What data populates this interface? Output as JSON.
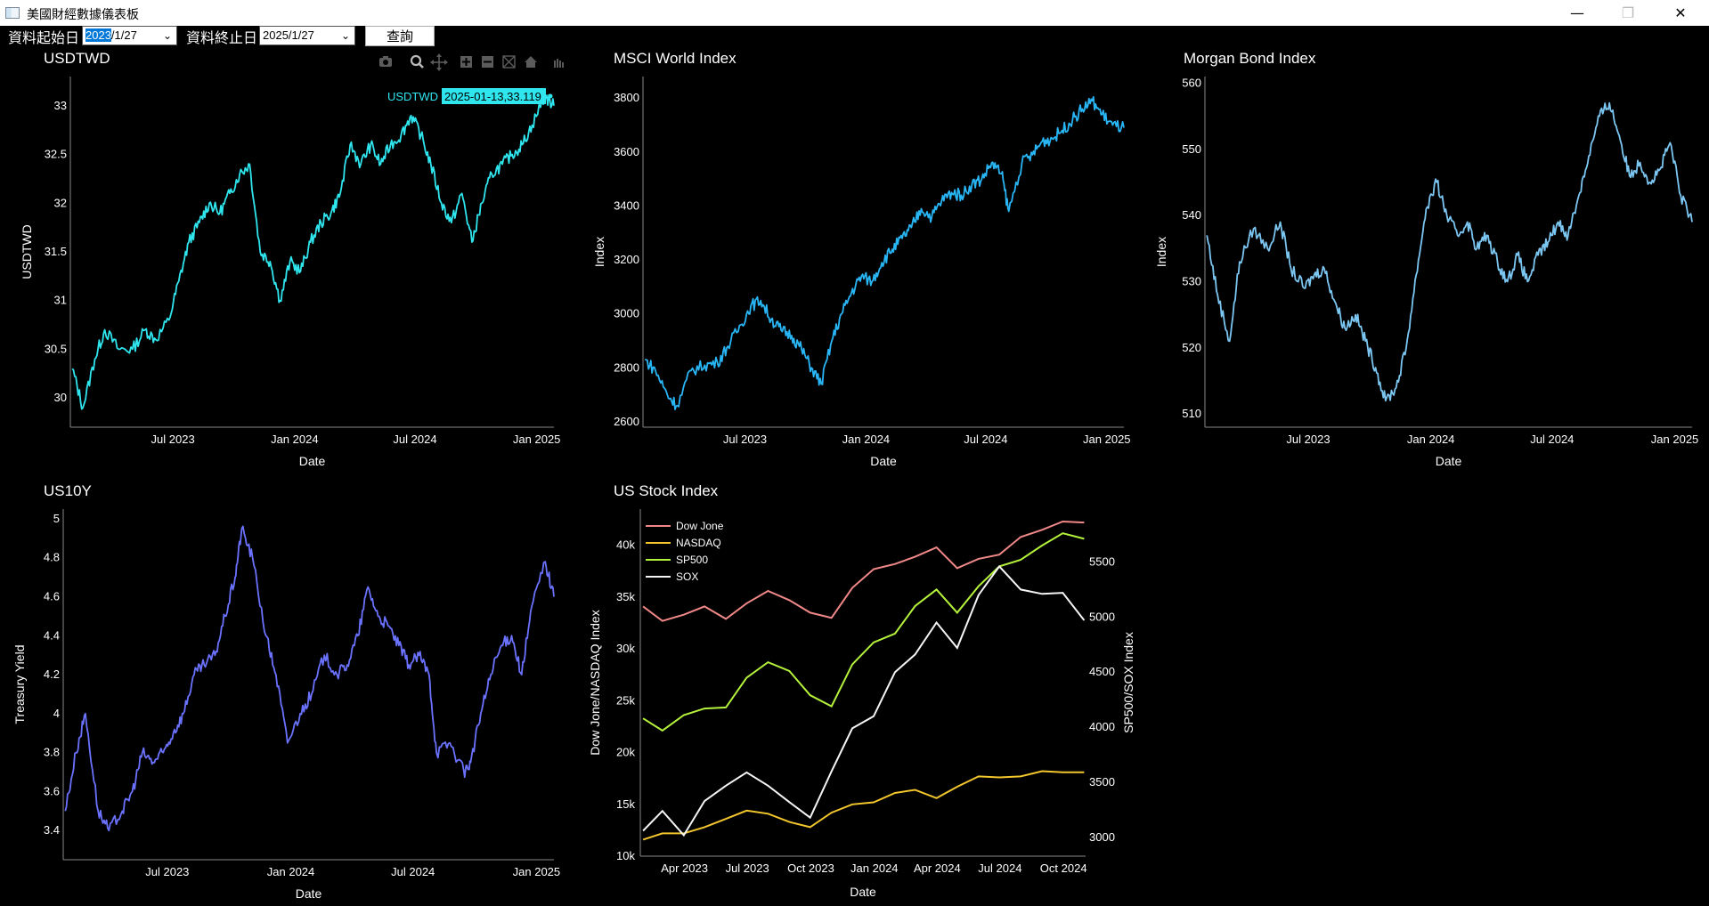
{
  "window": {
    "title": "美國財經數據儀表板",
    "minimize": "—",
    "restore": "❐",
    "close": "✕"
  },
  "toolbar": {
    "start_label": "資料起始日",
    "start_value_selected": "2023",
    "start_value_rest": "/1/27",
    "end_label": "資料終止日",
    "end_value": "2025/1/27",
    "query_button": "查詢"
  },
  "modebar_icons": [
    "camera-icon",
    "zoom-icon",
    "pan-icon",
    "zoom-in-icon",
    "zoom-out-icon",
    "autoscale-icon",
    "home-icon",
    "plotly-logo-icon"
  ],
  "colors": {
    "usdtwd": "#2fe6ef",
    "msci": "#29b6f6",
    "bond": "#7cc6f2",
    "us10y": "#6b72ff",
    "dow": "#f08888",
    "nasdaq": "#f2c62c",
    "sp500": "#b5f23b",
    "sox": "#f5f5f5"
  },
  "chart_data": [
    {
      "type": "line",
      "title": "USDTWD",
      "xlabel": "Date",
      "ylabel": "USDTWD",
      "x_ticks": [
        "Jul 2023",
        "Jan 2024",
        "Jul 2024",
        "Jan 2025"
      ],
      "y_ticks": [
        "30",
        "30.5",
        "31",
        "31.5",
        "32",
        "32.5",
        "33"
      ],
      "ylim": [
        29.7,
        33.3
      ],
      "x_range": [
        "2023-01-27",
        "2025-01-27"
      ],
      "hover_label": "USDTWD",
      "hover_value": "2025-01-13,33.119",
      "series": [
        {
          "name": "USDTWD",
          "x": [
            "2023-01-30",
            "2023-02-15",
            "2023-03-05",
            "2023-03-20",
            "2023-04-10",
            "2023-05-01",
            "2023-05-20",
            "2023-06-05",
            "2023-06-25",
            "2023-07-10",
            "2023-07-25",
            "2023-08-10",
            "2023-08-25",
            "2023-09-10",
            "2023-09-25",
            "2023-10-10",
            "2023-10-25",
            "2023-11-10",
            "2023-11-25",
            "2023-12-10",
            "2023-12-25",
            "2024-01-10",
            "2024-01-25",
            "2024-02-10",
            "2024-02-25",
            "2024-03-10",
            "2024-03-25",
            "2024-04-10",
            "2024-04-25",
            "2024-05-10",
            "2024-05-25",
            "2024-06-10",
            "2024-06-25",
            "2024-07-10",
            "2024-07-25",
            "2024-08-10",
            "2024-08-25",
            "2024-09-10",
            "2024-09-25",
            "2024-10-10",
            "2024-10-25",
            "2024-11-10",
            "2024-11-25",
            "2024-12-10",
            "2024-12-25",
            "2025-01-13",
            "2025-01-27"
          ],
          "values": [
            30.3,
            29.9,
            30.4,
            30.7,
            30.5,
            30.5,
            30.7,
            30.6,
            30.8,
            31.2,
            31.6,
            31.8,
            32.0,
            31.9,
            32.1,
            32.3,
            32.4,
            31.5,
            31.4,
            31.0,
            31.4,
            31.3,
            31.6,
            31.8,
            31.9,
            32.1,
            32.6,
            32.4,
            32.6,
            32.4,
            32.6,
            32.7,
            32.9,
            32.7,
            32.4,
            32.0,
            31.8,
            32.1,
            31.6,
            32.0,
            32.3,
            32.4,
            32.5,
            32.6,
            32.8,
            33.1,
            33.0
          ]
        }
      ]
    },
    {
      "type": "line",
      "title": "MSCI World Index",
      "xlabel": "Date",
      "ylabel": "Index",
      "x_ticks": [
        "Jul 2023",
        "Jan 2024",
        "Jul 2024",
        "Jan 2025"
      ],
      "y_ticks": [
        "2600",
        "2800",
        "3000",
        "3200",
        "3400",
        "3600",
        "3800"
      ],
      "ylim": [
        2580,
        3880
      ],
      "x_range": [
        "2023-01-27",
        "2025-01-27"
      ],
      "series": [
        {
          "name": "MSCI World",
          "x": [
            "2023-01-30",
            "2023-02-15",
            "2023-03-05",
            "2023-03-20",
            "2023-04-10",
            "2023-05-01",
            "2023-05-20",
            "2023-06-05",
            "2023-06-25",
            "2023-07-10",
            "2023-07-25",
            "2023-08-10",
            "2023-08-25",
            "2023-09-10",
            "2023-09-25",
            "2023-10-10",
            "2023-10-25",
            "2023-11-10",
            "2023-11-25",
            "2023-12-10",
            "2023-12-25",
            "2024-01-10",
            "2024-01-25",
            "2024-02-10",
            "2024-02-25",
            "2024-03-10",
            "2024-03-25",
            "2024-04-10",
            "2024-04-25",
            "2024-05-10",
            "2024-05-25",
            "2024-06-10",
            "2024-06-25",
            "2024-07-10",
            "2024-07-25",
            "2024-08-05",
            "2024-08-25",
            "2024-09-10",
            "2024-09-25",
            "2024-10-10",
            "2024-10-25",
            "2024-11-10",
            "2024-11-25",
            "2024-12-10",
            "2024-12-25",
            "2025-01-10",
            "2025-01-27"
          ],
          "values": [
            2830,
            2790,
            2700,
            2660,
            2790,
            2810,
            2820,
            2880,
            2960,
            3030,
            3050,
            2980,
            2940,
            2920,
            2870,
            2800,
            2740,
            2900,
            3000,
            3080,
            3140,
            3120,
            3190,
            3240,
            3280,
            3320,
            3390,
            3360,
            3420,
            3450,
            3440,
            3480,
            3500,
            3560,
            3520,
            3380,
            3560,
            3590,
            3640,
            3650,
            3680,
            3720,
            3760,
            3790,
            3740,
            3700,
            3690
          ]
        }
      ]
    },
    {
      "type": "line",
      "title": "Morgan Bond Index",
      "xlabel": "Date",
      "ylabel": "Index",
      "x_ticks": [
        "Jul 2023",
        "Jan 2024",
        "Jul 2024",
        "Jan 2025"
      ],
      "y_ticks": [
        "510",
        "520",
        "530",
        "540",
        "550",
        "560"
      ],
      "ylim": [
        508,
        561
      ],
      "x_range": [
        "2023-01-27",
        "2025-01-27"
      ],
      "series": [
        {
          "name": "Morgan Bond",
          "x": [
            "2023-01-30",
            "2023-02-15",
            "2023-03-05",
            "2023-03-20",
            "2023-04-10",
            "2023-05-01",
            "2023-05-20",
            "2023-06-05",
            "2023-06-25",
            "2023-07-10",
            "2023-07-25",
            "2023-08-10",
            "2023-08-25",
            "2023-09-10",
            "2023-09-25",
            "2023-10-10",
            "2023-10-25",
            "2023-11-10",
            "2023-11-25",
            "2023-12-10",
            "2023-12-25",
            "2024-01-10",
            "2024-01-25",
            "2024-02-10",
            "2024-02-25",
            "2024-03-10",
            "2024-03-25",
            "2024-04-10",
            "2024-04-25",
            "2024-05-10",
            "2024-05-25",
            "2024-06-10",
            "2024-06-25",
            "2024-07-10",
            "2024-07-25",
            "2024-08-10",
            "2024-08-25",
            "2024-09-10",
            "2024-09-25",
            "2024-10-10",
            "2024-10-25",
            "2024-11-10",
            "2024-11-25",
            "2024-12-10",
            "2024-12-25",
            "2025-01-10",
            "2025-01-27"
          ],
          "values": [
            537,
            528,
            521,
            533,
            538,
            535,
            539,
            532,
            529,
            531,
            532,
            527,
            523,
            525,
            521,
            517,
            512,
            514,
            520,
            531,
            541,
            545,
            540,
            537,
            539,
            535,
            537,
            533,
            530,
            534,
            530,
            534,
            536,
            539,
            537,
            543,
            549,
            555,
            557,
            552,
            546,
            548,
            545,
            547,
            551,
            543,
            539
          ]
        }
      ]
    },
    {
      "type": "line",
      "title": "US10Y",
      "xlabel": "Date",
      "ylabel": "Treasury Yield",
      "x_ticks": [
        "Jul 2023",
        "Jan 2024",
        "Jul 2024",
        "Jan 2025"
      ],
      "y_ticks": [
        "3.4",
        "3.6",
        "3.8",
        "4",
        "4.2",
        "4.4",
        "4.6",
        "4.8",
        "5"
      ],
      "ylim": [
        3.25,
        5.05
      ],
      "x_range": [
        "2023-01-27",
        "2025-01-27"
      ],
      "series": [
        {
          "name": "US10Y",
          "x": [
            "2023-01-30",
            "2023-02-15",
            "2023-03-01",
            "2023-03-20",
            "2023-04-05",
            "2023-04-25",
            "2023-05-10",
            "2023-05-25",
            "2023-06-10",
            "2023-06-25",
            "2023-07-10",
            "2023-07-25",
            "2023-08-10",
            "2023-08-25",
            "2023-09-10",
            "2023-09-25",
            "2023-10-10",
            "2023-10-20",
            "2023-11-05",
            "2023-11-25",
            "2023-12-10",
            "2023-12-27",
            "2024-01-15",
            "2024-02-01",
            "2024-02-20",
            "2024-03-10",
            "2024-03-25",
            "2024-04-10",
            "2024-04-25",
            "2024-05-10",
            "2024-05-25",
            "2024-06-10",
            "2024-06-25",
            "2024-07-10",
            "2024-07-25",
            "2024-08-05",
            "2024-08-25",
            "2024-09-15",
            "2024-09-25",
            "2024-10-10",
            "2024-10-25",
            "2024-11-10",
            "2024-11-25",
            "2024-12-10",
            "2024-12-25",
            "2025-01-14",
            "2025-01-27"
          ],
          "values": [
            3.5,
            3.8,
            4.0,
            3.5,
            3.4,
            3.5,
            3.6,
            3.8,
            3.75,
            3.8,
            3.9,
            4.0,
            4.2,
            4.25,
            4.3,
            4.5,
            4.7,
            4.95,
            4.8,
            4.4,
            4.2,
            3.85,
            4.0,
            4.1,
            4.3,
            4.2,
            4.25,
            4.4,
            4.65,
            4.5,
            4.45,
            4.35,
            4.25,
            4.3,
            4.2,
            3.8,
            3.85,
            3.7,
            3.75,
            4.0,
            4.2,
            4.35,
            4.4,
            4.2,
            4.55,
            4.78,
            4.6
          ]
        }
      ]
    },
    {
      "type": "line",
      "title": "US Stock Index",
      "xlabel": "Date",
      "ylabel": "Dow Jone/NASDAQ Index",
      "y2label": "SP500/SOX Index",
      "x_ticks": [
        "Apr 2023",
        "Jul 2023",
        "Oct 2023",
        "Jan 2024",
        "Apr 2024",
        "Jul 2024",
        "Oct 2024"
      ],
      "y_ticks": [
        "10k",
        "15k",
        "20k",
        "25k",
        "30k",
        "35k",
        "40k"
      ],
      "y2_ticks": [
        "3000",
        "3500",
        "4000",
        "4500",
        "5000",
        "5500"
      ],
      "ylim": [
        10000,
        43500
      ],
      "y2lim": [
        2830,
        5980
      ],
      "legend": "top-left",
      "x": [
        "2023-01-31",
        "2023-02-28",
        "2023-03-31",
        "2023-04-30",
        "2023-05-31",
        "2023-06-30",
        "2023-07-31",
        "2023-08-31",
        "2023-09-30",
        "2023-10-31",
        "2023-11-30",
        "2023-12-31",
        "2024-01-31",
        "2024-02-29",
        "2024-03-31",
        "2024-04-30",
        "2024-05-31",
        "2024-06-30",
        "2024-07-31",
        "2024-08-31",
        "2024-09-30",
        "2024-10-31"
      ],
      "series": [
        {
          "name": "Dow Jone",
          "axis": "y",
          "values": [
            34100,
            32700,
            33300,
            34100,
            32900,
            34400,
            35600,
            34700,
            33500,
            33000,
            35900,
            37700,
            38200,
            38900,
            39800,
            37800,
            38700,
            39100,
            40800,
            41500,
            42300,
            42200
          ]
        },
        {
          "name": "NASDAQ",
          "axis": "y",
          "values": [
            11600,
            12200,
            12200,
            12800,
            13600,
            14400,
            14100,
            13300,
            12800,
            14200,
            15000,
            15200,
            16100,
            16400,
            15600,
            16700,
            17700,
            17600,
            17700,
            18200,
            18100,
            18100
          ]
        },
        {
          "name": "SP500",
          "axis": "y2",
          "values": [
            4080,
            3970,
            4110,
            4170,
            4180,
            4450,
            4590,
            4510,
            4290,
            4190,
            4570,
            4770,
            4850,
            5100,
            5250,
            5040,
            5280,
            5460,
            5520,
            5650,
            5760,
            5710
          ]
        },
        {
          "name": "SOX",
          "axis": "y2",
          "values": [
            3060,
            3240,
            3020,
            3330,
            3470,
            3590,
            3470,
            3320,
            3180,
            3600,
            3990,
            4100,
            4500,
            4660,
            4950,
            4720,
            5200,
            5460,
            5250,
            5210,
            5220,
            4970
          ]
        }
      ]
    }
  ]
}
